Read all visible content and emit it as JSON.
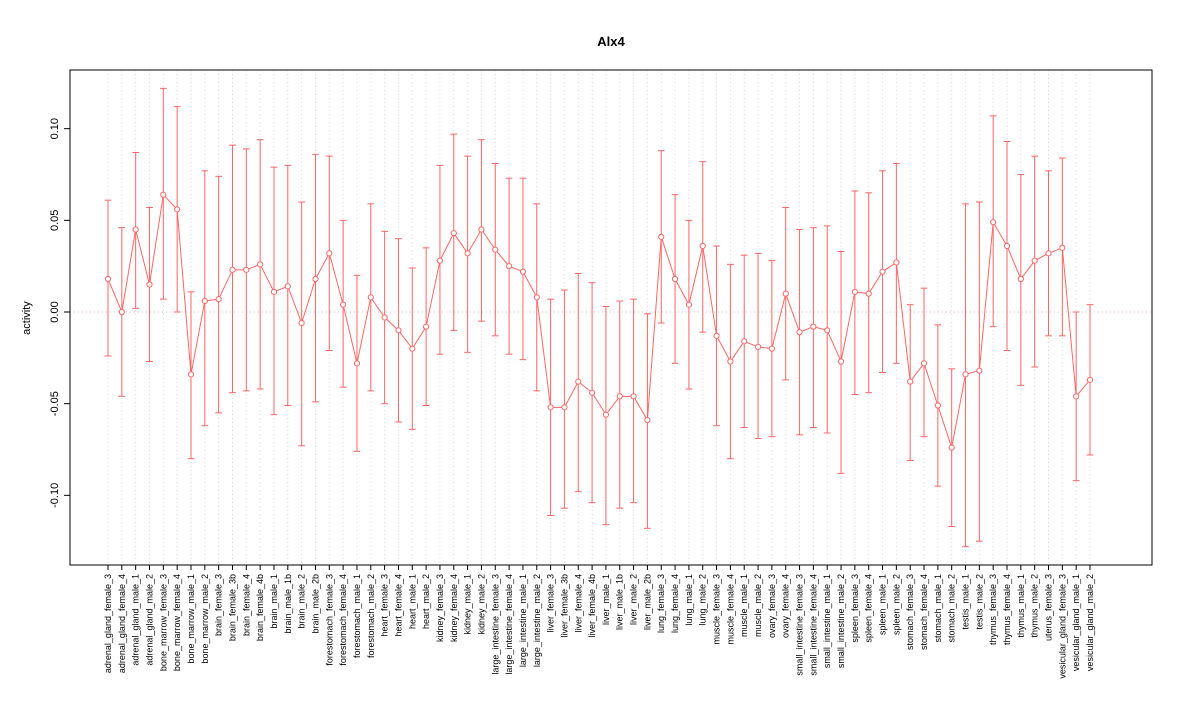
{
  "colors": {
    "series": "#ff6666",
    "grid": "#d8d8d8",
    "zero_line": "#e5bcbc",
    "axis": "#000000",
    "background": "#ffffff"
  },
  "chart_data": {
    "type": "line",
    "title": "Alx4",
    "xlabel": "",
    "ylabel": "activity",
    "ylim": [
      -0.138,
      0.132
    ],
    "yticks": [
      -0.1,
      -0.05,
      0.0,
      0.05,
      0.1
    ],
    "ytick_labels": [
      "-0.10",
      "-0.05",
      "0.00",
      "0.05",
      "0.10"
    ],
    "grid": "vertical dotted line at each category",
    "zero_reference_line": true,
    "legend": "none",
    "point_style": "open-circle",
    "error_bars": true,
    "categories": [
      "adrenal_gland_female_3",
      "adrenal_gland_female_4",
      "adrenal_gland_male_1",
      "adrenal_gland_male_2",
      "bone_marrow_female_3",
      "bone_marrow_female_4",
      "bone_marrow_male_1",
      "bone_marrow_male_2",
      "brain_female_3",
      "brain_female_3b",
      "brain_female_4",
      "brain_female_4b",
      "brain_male_1",
      "brain_male_1b",
      "brain_male_2",
      "brain_male_2b",
      "forestomach_female_3",
      "forestomach_female_4",
      "forestomach_male_1",
      "forestomach_male_2",
      "heart_female_3",
      "heart_female_4",
      "heart_male_1",
      "heart_male_2",
      "kidney_female_3",
      "kidney_female_4",
      "kidney_male_1",
      "kidney_male_2",
      "large_intestine_female_3",
      "large_intestine_female_4",
      "large_intestine_male_1",
      "large_intestine_male_2",
      "liver_female_3",
      "liver_female_3b",
      "liver_female_4",
      "liver_female_4b",
      "liver_male_1",
      "liver_male_1b",
      "liver_male_2",
      "liver_male_2b",
      "lung_female_3",
      "lung_female_4",
      "lung_male_1",
      "lung_male_2",
      "muscle_female_3",
      "muscle_female_4",
      "muscle_male_1",
      "muscle_male_2",
      "ovary_female_3",
      "ovary_female_4",
      "small_intestine_female_3",
      "small_intestine_female_4",
      "small_intestine_male_1",
      "small_intestine_male_2",
      "spleen_female_3",
      "spleen_female_4",
      "spleen_male_1",
      "spleen_male_2",
      "stomach_female_3",
      "stomach_female_4",
      "stomach_male_1",
      "stomach_male_2",
      "testis_male_1",
      "testis_male_2",
      "thymus_female_3",
      "thymus_female_4",
      "thymus_male_1",
      "thymus_male_2",
      "uterus_female_3",
      "vesicular_gland_female_3",
      "vesicular_gland_male_1",
      "vesicular_gland_male_2"
    ],
    "values": [
      0.018,
      0.0,
      0.045,
      0.015,
      0.064,
      0.056,
      -0.034,
      0.006,
      0.007,
      0.023,
      0.023,
      0.026,
      0.011,
      0.014,
      -0.006,
      0.018,
      0.032,
      0.004,
      -0.028,
      0.008,
      -0.003,
      -0.01,
      -0.02,
      -0.008,
      0.028,
      0.043,
      0.032,
      0.045,
      0.034,
      0.025,
      0.022,
      0.008,
      -0.052,
      -0.052,
      -0.038,
      -0.044,
      -0.056,
      -0.046,
      -0.046,
      -0.059,
      0.041,
      0.018,
      0.004,
      0.036,
      -0.013,
      -0.027,
      -0.016,
      -0.019,
      -0.02,
      0.01,
      -0.011,
      -0.008,
      -0.01,
      -0.027,
      0.011,
      0.01,
      0.022,
      0.027,
      -0.038,
      -0.028,
      -0.051,
      -0.074,
      -0.034,
      -0.032,
      0.049,
      0.036,
      0.018,
      0.028,
      0.032,
      0.035,
      -0.046,
      -0.037
    ],
    "ci_low": [
      -0.024,
      -0.046,
      0.002,
      -0.027,
      0.007,
      0.0,
      -0.08,
      -0.062,
      -0.055,
      -0.044,
      -0.043,
      -0.042,
      -0.056,
      -0.051,
      -0.073,
      -0.049,
      -0.021,
      -0.041,
      -0.076,
      -0.043,
      -0.05,
      -0.06,
      -0.064,
      -0.051,
      -0.023,
      -0.01,
      -0.022,
      -0.005,
      -0.013,
      -0.023,
      -0.026,
      -0.043,
      -0.111,
      -0.107,
      -0.098,
      -0.104,
      -0.116,
      -0.107,
      -0.104,
      -0.118,
      -0.006,
      -0.028,
      -0.042,
      -0.011,
      -0.062,
      -0.08,
      -0.063,
      -0.069,
      -0.068,
      -0.037,
      -0.067,
      -0.063,
      -0.066,
      -0.088,
      -0.045,
      -0.044,
      -0.033,
      -0.028,
      -0.081,
      -0.068,
      -0.095,
      -0.117,
      -0.128,
      -0.125,
      -0.008,
      -0.021,
      -0.04,
      -0.03,
      -0.013,
      -0.013,
      -0.092,
      -0.078
    ],
    "ci_high": [
      0.061,
      0.046,
      0.087,
      0.057,
      0.122,
      0.112,
      0.011,
      0.077,
      0.074,
      0.091,
      0.089,
      0.094,
      0.079,
      0.08,
      0.06,
      0.086,
      0.085,
      0.05,
      0.02,
      0.059,
      0.044,
      0.04,
      0.024,
      0.035,
      0.08,
      0.097,
      0.085,
      0.094,
      0.081,
      0.073,
      0.073,
      0.059,
      0.007,
      0.012,
      0.021,
      0.016,
      0.003,
      0.006,
      0.007,
      -0.001,
      0.088,
      0.064,
      0.05,
      0.082,
      0.036,
      0.026,
      0.031,
      0.032,
      0.028,
      0.057,
      0.045,
      0.046,
      0.047,
      0.033,
      0.066,
      0.065,
      0.077,
      0.081,
      0.004,
      0.013,
      -0.007,
      -0.031,
      0.059,
      0.06,
      0.107,
      0.093,
      0.075,
      0.085,
      0.077,
      0.084,
      0.0,
      0.004
    ]
  }
}
